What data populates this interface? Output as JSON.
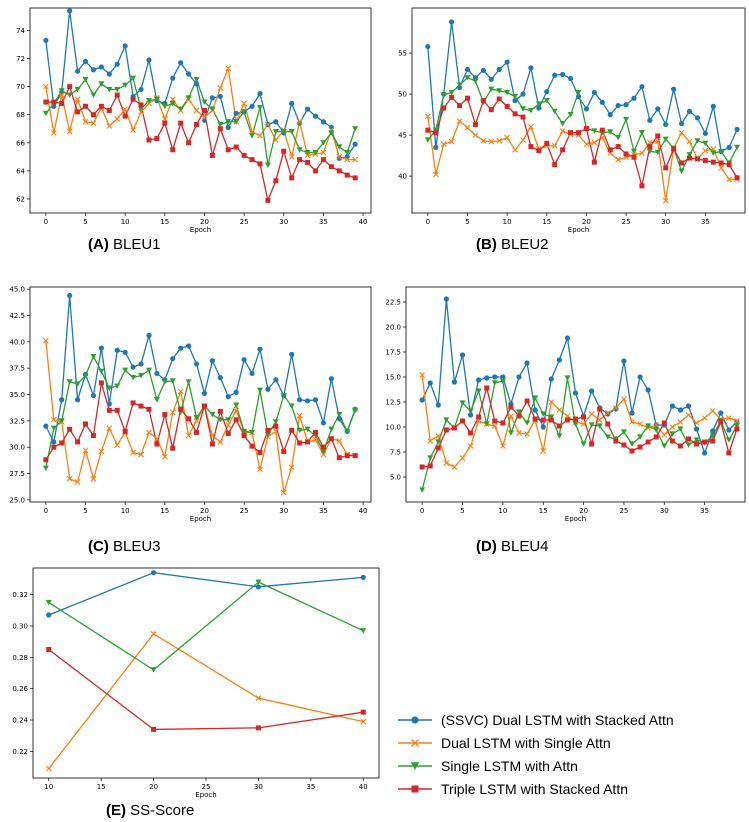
{
  "captions": [
    {
      "letter": "(A)",
      "text": "BLEU1"
    },
    {
      "letter": "(B)",
      "text": "BLEU2"
    },
    {
      "letter": "(C)",
      "text": "BLEU3"
    },
    {
      "letter": "(D)",
      "text": "BLEU4"
    },
    {
      "letter": "(E)",
      "text": "SS-Score"
    }
  ],
  "legend": [
    {
      "name": "(SSVC) Dual LSTM with Stacked Attn",
      "color": "#1f77b4",
      "marker": "circle"
    },
    {
      "name": "Dual LSTM with Single Attn",
      "color": "#ff7f0e",
      "marker": "x"
    },
    {
      "name": "Single LSTM with Attn",
      "color": "#2ca02c",
      "marker": "triangle-down"
    },
    {
      "name": "Triple LSTM with Stacked Attn",
      "color": "#d62728",
      "marker": "square"
    }
  ],
  "chart_data": [
    {
      "id": "A",
      "type": "line",
      "xlabel": "Epoch",
      "ylabel": "",
      "xlim": [
        -2,
        41
      ],
      "ylim": [
        61,
        75.6
      ],
      "xticks": [
        0,
        5,
        10,
        15,
        20,
        25,
        30,
        35,
        40
      ],
      "yticks": [
        62,
        64,
        66,
        68,
        70,
        72,
        74
      ],
      "x": [
        0,
        1,
        2,
        3,
        4,
        5,
        6,
        7,
        8,
        9,
        10,
        11,
        12,
        13,
        14,
        15,
        16,
        17,
        18,
        19,
        20,
        21,
        22,
        23,
        24,
        25,
        26,
        27,
        28,
        29,
        30,
        31,
        32,
        33,
        34,
        35,
        36,
        37,
        38,
        39
      ],
      "series": [
        {
          "values": [
            73.3,
            68.6,
            69.6,
            75.4,
            71.1,
            71.8,
            71.2,
            71.4,
            70.9,
            71.6,
            72.9,
            69.3,
            69.8,
            71.9,
            69.0,
            68.8,
            70.6,
            71.7,
            70.9,
            70.2,
            67.6,
            69.2,
            69.3,
            67.1,
            68.1,
            68.2,
            68.6,
            69.5,
            67.3,
            67.5,
            66.7,
            68.8,
            67.4,
            68.4,
            67.9,
            67.5,
            67.1,
            64.9,
            65.0,
            65.9
          ]
        },
        {
          "values": [
            70.0,
            66.7,
            69.4,
            66.8,
            69.1,
            67.5,
            67.4,
            68.5,
            67.2,
            67.7,
            68.4,
            66.9,
            68.2,
            68.8,
            69.2,
            67.7,
            69.1,
            68.3,
            69.1,
            68.3,
            67.8,
            68.3,
            69.9,
            71.3,
            67.5,
            68.8,
            66.8,
            66.5,
            67.3,
            66.2,
            66.9,
            65.0,
            67.5,
            65.1,
            65.2,
            65.3,
            66.9,
            65.0,
            64.8,
            64.8
          ]
        },
        {
          "values": [
            68.1,
            68.8,
            69.7,
            69.4,
            69.8,
            70.5,
            69.4,
            70.2,
            69.8,
            69.8,
            70.1,
            70.6,
            68.4,
            69.0,
            69.1,
            68.6,
            68.8,
            68.4,
            69.2,
            70.5,
            68.9,
            68.4,
            67.3,
            67.5,
            67.5,
            68.2,
            66.5,
            68.5,
            64.4,
            66.8,
            66.8,
            66.8,
            65.5,
            65.3,
            65.3,
            66.0,
            66.7,
            65.7,
            65.3,
            67.0
          ]
        },
        {
          "values": [
            68.9,
            68.9,
            68.8,
            70.0,
            68.2,
            68.6,
            68.0,
            68.6,
            68.3,
            69.4,
            67.9,
            69.1,
            68.7,
            66.2,
            66.3,
            67.4,
            65.5,
            67.4,
            66.0,
            67.3,
            68.3,
            65.1,
            67.0,
            65.5,
            65.7,
            65.1,
            64.8,
            64.5,
            61.9,
            63.3,
            65.4,
            63.5,
            64.8,
            64.6,
            64.0,
            64.8,
            64.3,
            64.0,
            63.7,
            63.5
          ]
        }
      ]
    },
    {
      "id": "B",
      "type": "line",
      "xlabel": "Epoch",
      "ylabel": "",
      "xlim": [
        -2,
        40
      ],
      "ylim": [
        35.5,
        60.5
      ],
      "xticks": [
        0,
        5,
        10,
        15,
        20,
        25,
        30,
        35
      ],
      "yticks": [
        40,
        45,
        50,
        55
      ],
      "x": [
        0,
        1,
        2,
        3,
        4,
        5,
        6,
        7,
        8,
        9,
        10,
        11,
        12,
        13,
        14,
        15,
        16,
        17,
        18,
        19,
        20,
        21,
        22,
        23,
        24,
        25,
        26,
        27,
        28,
        29,
        30,
        31,
        32,
        33,
        34,
        35,
        36,
        37,
        38,
        39
      ],
      "series": [
        {
          "values": [
            55.8,
            43.5,
            50.0,
            58.8,
            50.8,
            53.0,
            52.0,
            52.9,
            51.8,
            53.0,
            53.9,
            49.2,
            50.0,
            53.2,
            48.3,
            50.3,
            52.3,
            52.4,
            51.9,
            49.7,
            48.2,
            50.2,
            49.0,
            47.5,
            48.6,
            48.7,
            49.5,
            50.9,
            46.8,
            48.2,
            46.3,
            50.6,
            46.4,
            47.9,
            47.1,
            45.2,
            48.5,
            43.0,
            43.5,
            45.7
          ]
        },
        {
          "values": [
            47.3,
            40.2,
            43.9,
            44.2,
            46.7,
            45.9,
            45.0,
            44.3,
            44.2,
            44.3,
            44.7,
            43.2,
            44.4,
            46.0,
            43.3,
            43.7,
            43.7,
            45.5,
            45.1,
            45.0,
            43.9,
            44.1,
            44.7,
            42.8,
            42.0,
            42.3,
            42.6,
            42.8,
            44.1,
            44.2,
            37.0,
            43.4,
            45.3,
            44.2,
            42.1,
            43.1,
            43.3,
            41.0,
            39.6,
            39.6
          ]
        },
        {
          "values": [
            44.4,
            45.6,
            49.9,
            50.2,
            51.1,
            52.0,
            51.6,
            49.0,
            50.6,
            50.4,
            50.2,
            49.7,
            48.2,
            48.0,
            48.8,
            49.2,
            47.9,
            46.4,
            47.5,
            50.2,
            45.8,
            45.5,
            45.3,
            45.4,
            44.7,
            46.9,
            43.0,
            45.3,
            43.0,
            42.9,
            44.5,
            43.4,
            40.6,
            42.6,
            44.3,
            44.0,
            42.8,
            43.0,
            41.6,
            43.5
          ]
        },
        {
          "values": [
            45.6,
            45.3,
            48.3,
            49.6,
            48.6,
            49.5,
            46.3,
            49.2,
            48.1,
            49.4,
            48.5,
            47.6,
            47.2,
            43.6,
            43.1,
            44.0,
            41.4,
            43.2,
            45.3,
            45.3,
            45.8,
            41.7,
            45.6,
            43.2,
            43.6,
            42.7,
            42.3,
            38.8,
            43.6,
            44.9,
            41.0,
            43.3,
            41.6,
            42.2,
            42.1,
            41.9,
            41.7,
            41.6,
            41.4,
            39.8
          ]
        }
      ]
    },
    {
      "id": "C",
      "type": "line",
      "xlabel": "Epoch",
      "ylabel": "",
      "xlim": [
        -2,
        41
      ],
      "ylim": [
        24.8,
        45.2
      ],
      "xticks": [
        0,
        5,
        10,
        15,
        20,
        25,
        30,
        35,
        40
      ],
      "yticks": [
        25.0,
        27.5,
        30.0,
        32.5,
        35.0,
        37.5,
        40.0,
        42.5,
        45.0
      ],
      "x": [
        0,
        1,
        2,
        3,
        4,
        5,
        6,
        7,
        8,
        9,
        10,
        11,
        12,
        13,
        14,
        15,
        16,
        17,
        18,
        19,
        20,
        21,
        22,
        23,
        24,
        25,
        26,
        27,
        28,
        29,
        30,
        31,
        32,
        33,
        34,
        35,
        36,
        37,
        38,
        39
      ],
      "series": [
        {
          "values": [
            32.0,
            30.5,
            34.5,
            44.4,
            34.5,
            36.9,
            34.9,
            39.4,
            34.1,
            39.2,
            39.0,
            37.6,
            37.9,
            40.6,
            37.0,
            36.4,
            38.4,
            39.4,
            39.6,
            37.9,
            35.1,
            38.2,
            36.6,
            34.8,
            35.2,
            38.3,
            37.0,
            39.3,
            35.5,
            36.4,
            34.9,
            38.8,
            34.5,
            34.4,
            34.5,
            32.3,
            36.5,
            32.7,
            31.5,
            33.6
          ]
        },
        {
          "values": [
            40.1,
            32.6,
            32.4,
            27.0,
            26.7,
            29.7,
            27.0,
            29.6,
            31.8,
            30.2,
            31.4,
            29.5,
            29.3,
            31.4,
            30.8,
            29.1,
            33.3,
            35.3,
            31.1,
            32.5,
            33.9,
            31.1,
            30.5,
            32.1,
            33.5,
            31.4,
            31.4,
            27.9,
            31.0,
            31.5,
            25.7,
            28.1,
            33.0,
            30.5,
            30.7,
            29.3,
            30.8,
            30.6,
            29.3,
            29.2
          ]
        },
        {
          "values": [
            28.0,
            31.8,
            32.5,
            36.2,
            36.0,
            36.8,
            38.6,
            37.2,
            35.6,
            35.8,
            37.3,
            36.6,
            36.8,
            37.3,
            34.5,
            36.2,
            36.3,
            33.3,
            36.2,
            32.8,
            33.9,
            33.1,
            32.6,
            32.6,
            34.0,
            31.5,
            31.4,
            35.4,
            31.2,
            32.4,
            34.9,
            33.9,
            31.6,
            31.7,
            31.1,
            29.6,
            31.7,
            33.1,
            31.5,
            33.5
          ]
        },
        {
          "values": [
            28.8,
            30.0,
            30.4,
            31.7,
            30.5,
            32.2,
            31.1,
            36.1,
            33.5,
            33.5,
            31.5,
            34.2,
            33.9,
            33.6,
            30.3,
            33.1,
            29.9,
            33.6,
            32.7,
            31.4,
            33.9,
            30.3,
            33.4,
            31.3,
            32.6,
            31.1,
            30.1,
            29.5,
            31.6,
            32.0,
            29.6,
            31.6,
            30.4,
            30.5,
            31.4,
            30.0,
            30.8,
            29.0,
            29.2,
            29.2
          ]
        }
      ]
    },
    {
      "id": "D",
      "type": "line",
      "xlabel": "Epoch",
      "ylabel": "",
      "xlim": [
        -2,
        40
      ],
      "ylim": [
        2.5,
        24.0
      ],
      "xticks": [
        0,
        5,
        10,
        15,
        20,
        25,
        30,
        35
      ],
      "yticks": [
        5.0,
        7.5,
        10.0,
        12.5,
        15.0,
        17.5,
        20.0,
        22.5
      ],
      "x": [
        0,
        1,
        2,
        3,
        4,
        5,
        6,
        7,
        8,
        9,
        10,
        11,
        12,
        13,
        14,
        15,
        16,
        17,
        18,
        19,
        20,
        21,
        22,
        23,
        24,
        25,
        26,
        27,
        28,
        29,
        30,
        31,
        32,
        33,
        34,
        35,
        36,
        37,
        38,
        39
      ],
      "series": [
        {
          "values": [
            12.7,
            14.4,
            12.2,
            22.8,
            14.5,
            17.2,
            11.2,
            14.7,
            14.9,
            15.0,
            15.0,
            12.3,
            15.0,
            16.4,
            11.7,
            10.0,
            14.8,
            16.7,
            18.9,
            13.4,
            11.1,
            13.6,
            11.9,
            11.3,
            11.8,
            16.6,
            11.4,
            15.0,
            13.7,
            10.2,
            10.2,
            12.1,
            11.7,
            12.1,
            9.8,
            7.4,
            9.6,
            11.4,
            9.7,
            10.5
          ]
        },
        {
          "values": [
            15.2,
            8.6,
            9.1,
            6.4,
            6.0,
            6.9,
            8.1,
            10.6,
            10.3,
            10.1,
            8.1,
            11.1,
            9.4,
            9.3,
            10.7,
            7.6,
            12.5,
            11.7,
            11.1,
            10.5,
            10.3,
            11.3,
            10.7,
            11.4,
            11.9,
            12.8,
            10.5,
            10.3,
            9.9,
            10.2,
            9.2,
            10.0,
            10.5,
            11.2,
            10.4,
            10.9,
            11.6,
            10.8,
            10.9,
            10.6
          ]
        },
        {
          "values": [
            3.7,
            6.9,
            8.5,
            10.7,
            9.9,
            12.4,
            11.6,
            13.6,
            10.3,
            14.4,
            14.6,
            9.4,
            11.5,
            10.4,
            12.9,
            11.3,
            11.0,
            9.1,
            14.9,
            10.3,
            8.3,
            10.2,
            10.1,
            9.0,
            8.8,
            9.5,
            8.3,
            9.0,
            10.1,
            9.7,
            8.1,
            9.3,
            9.8,
            8.2,
            8.7,
            8.4,
            9.1,
            10.6,
            8.7,
            10.1
          ]
        },
        {
          "values": [
            6.0,
            6.1,
            7.9,
            9.7,
            9.9,
            10.6,
            9.4,
            11.0,
            13.9,
            10.6,
            10.4,
            12.0,
            11.1,
            12.6,
            10.8,
            10.7,
            10.7,
            10.1,
            10.7,
            10.8,
            11.0,
            8.3,
            11.8,
            10.3,
            8.6,
            8.2,
            7.6,
            8.0,
            8.5,
            9.0,
            10.4,
            8.6,
            8.1,
            8.8,
            8.3,
            8.5,
            8.6,
            10.5,
            7.4,
            9.8
          ]
        }
      ]
    },
    {
      "id": "E",
      "type": "line",
      "xlabel": "Epoch",
      "ylabel": "",
      "xlim": [
        8.5,
        41.5
      ],
      "ylim": [
        0.203,
        0.337
      ],
      "xticks": [
        10,
        15,
        20,
        25,
        30,
        35,
        40
      ],
      "yticks": [
        0.22,
        0.24,
        0.26,
        0.28,
        0.3,
        0.32
      ],
      "x": [
        10,
        20,
        30,
        40
      ],
      "series": [
        {
          "values": [
            0.307,
            0.334,
            0.325,
            0.331
          ]
        },
        {
          "values": [
            0.209,
            0.295,
            0.254,
            0.239
          ]
        },
        {
          "values": [
            0.315,
            0.272,
            0.328,
            0.297
          ]
        },
        {
          "values": [
            0.285,
            0.234,
            0.235,
            0.245
          ]
        }
      ]
    }
  ]
}
